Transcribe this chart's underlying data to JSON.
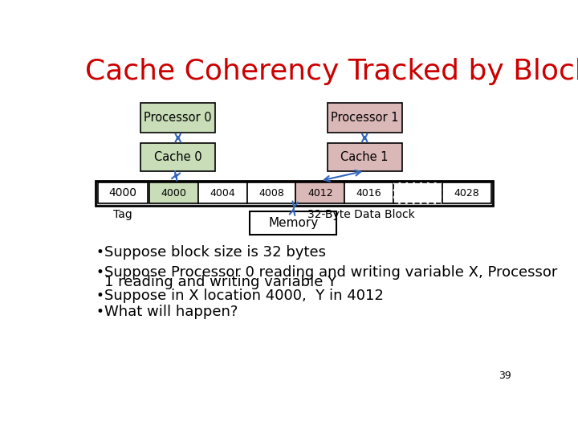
{
  "title": "Cache Coherency Tracked by Block",
  "title_color": "#cc0000",
  "title_fontsize": 26,
  "proc0_label": "Processor 0",
  "proc1_label": "Processor 1",
  "cache0_label": "Cache 0",
  "cache1_label": "Cache 1",
  "memory_label": "Memory",
  "tag_label": "Tag",
  "block_label": "32-Byte Data Block",
  "proc0_color": "#c8ddb8",
  "proc1_color": "#dbb8b8",
  "cache0_color": "#c8ddb8",
  "cache1_color": "#dbb8b8",
  "memory_color": "#ffffff",
  "mem_row_bg": "#cccccc",
  "tag_cell_color": "#ffffff",
  "cell0_color": "#c8ddb8",
  "cell12_color": "#dbb8b8",
  "mem_cells": [
    "4000",
    "4004",
    "4008",
    "4012",
    "4016",
    "",
    "4028"
  ],
  "cell_dashed_idx": 5,
  "tag_value": "4000",
  "bullet_points": [
    "Suppose block size is 32 bytes",
    "Suppose Processor 0 reading and writing variable X, Processor\n1 reading and writing variable Y",
    "Suppose in X location 4000,  Y in 4012",
    "What will happen?"
  ],
  "bullet_fontsize": 13,
  "page_number": "39",
  "arrow_color": "#3366bb",
  "background_color": "#ffffff"
}
